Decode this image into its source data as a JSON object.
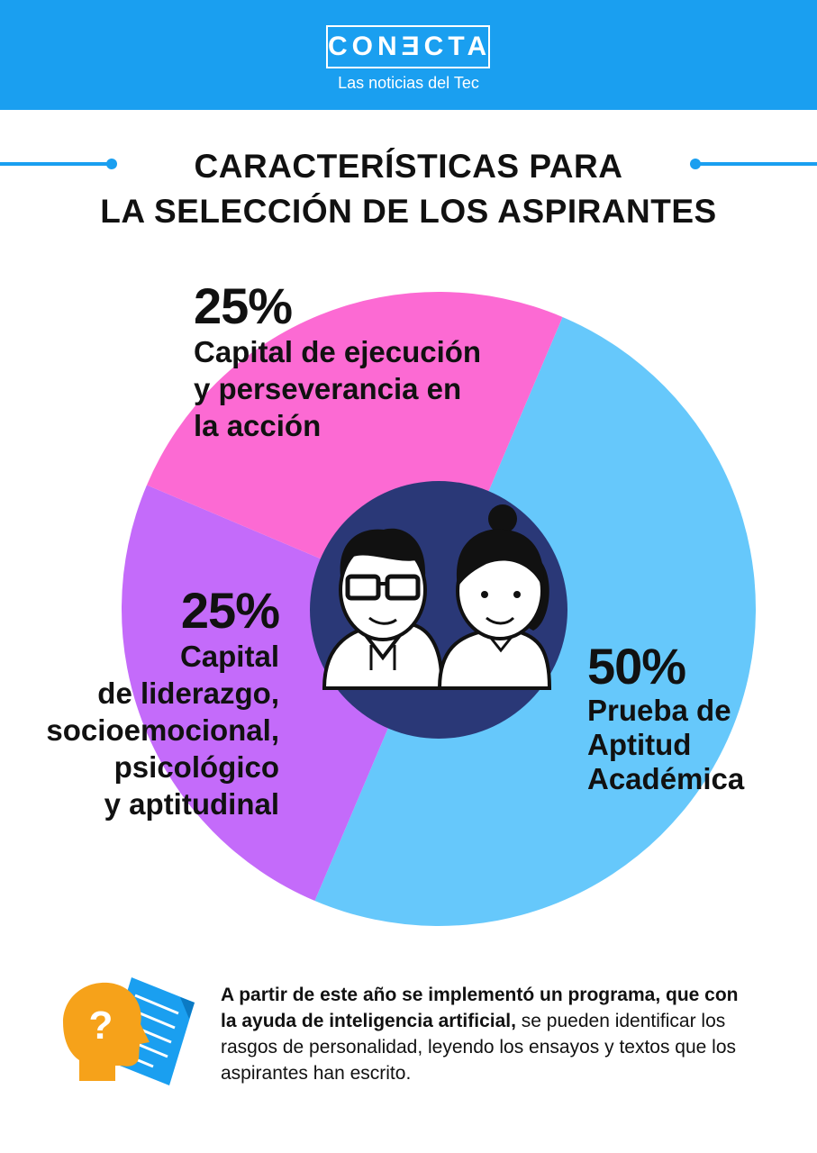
{
  "brand": {
    "name": "CONƎCTA",
    "tagline": "Las noticias del Tec",
    "color": "#1a9ff0"
  },
  "title": {
    "line1": "CARACTERÍSTICAS PARA",
    "line2": "LA SELECCIÓN DE LOS ASPIRANTES"
  },
  "chart_data": {
    "type": "pie",
    "slices": [
      {
        "label_lines": [
          "Prueba de",
          "Aptitud",
          "Académica"
        ],
        "percent_text": "50%",
        "value": 50,
        "color": "#66c8fb"
      },
      {
        "label_lines": [
          "Capital",
          "de liderazgo,",
          "socioemocional,",
          "psicológico",
          "y aptitudinal"
        ],
        "percent_text": "25%",
        "value": 25,
        "color": "#c46bfa"
      },
      {
        "label_lines": [
          "Capital de ejecución",
          "y perseverancia en",
          "la acción"
        ],
        "percent_text": "25%",
        "value": 25,
        "color": "#fc6ad3"
      }
    ],
    "center_icon": "two-students-icon",
    "center_color": "#2a3877"
  },
  "note": {
    "bold": "A partir de este año se implementó un programa, que con la ayuda de inteligencia artificial,",
    "regular": " se pueden identificar los rasgos de personalidad, leyendo los ensayos y textos que los aspirantes han escrito.",
    "icons": [
      "head-question-icon",
      "document-icon"
    ]
  }
}
